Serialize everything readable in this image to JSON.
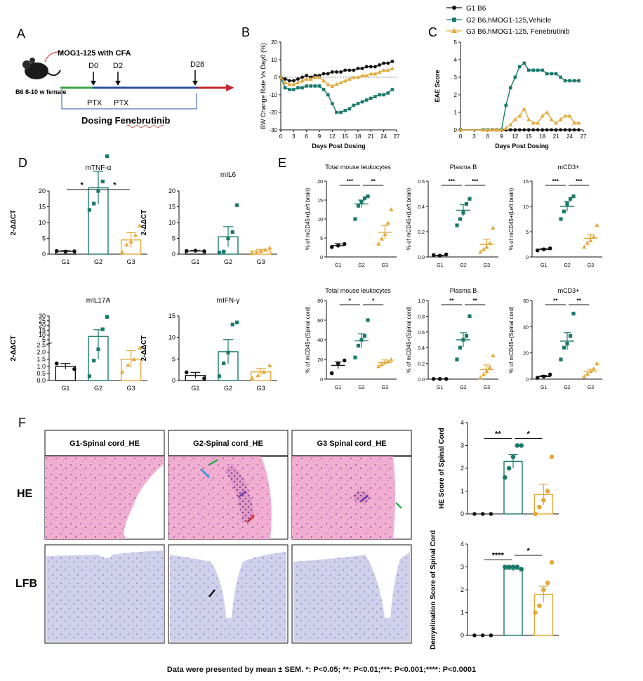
{
  "colors": {
    "g1": "#111111",
    "g2": "#1a7a6a",
    "g3": "#e3a93b",
    "arrow_red": "#c0282e",
    "timeline_green": "#3aa444",
    "timeline_blue": "#2a4fa0",
    "he_pink": "#f0a8c8",
    "lfb_blue": "#c9cbe6"
  },
  "panel_letters": {
    "a": "A",
    "b": "B",
    "c": "C",
    "d": "D",
    "e": "E",
    "f": "F"
  },
  "panel_a": {
    "immunization": "MOG1-125 with CFA",
    "mouse": "B6 8-10 w female",
    "d0": "D0",
    "d2": "D2",
    "d28": "D28",
    "ptx1": "PTX",
    "ptx2": "PTX",
    "dosing": "Dosing Fenebrutinib"
  },
  "legend": {
    "g1": "G1 B6",
    "g2": "G2 B6,hMOG1-125,Vehicle",
    "g3": "G3 B6,hMOG1-125, Fenebrutinib"
  },
  "line_charts": [
    {
      "id": "b",
      "type": "line",
      "ylabel": "BW Change Rate Vs Day0 (%)",
      "xlabel": "Days Post Dosing",
      "ylim": [
        -30,
        20
      ],
      "yticks": [
        -30,
        -20,
        -10,
        0,
        10,
        20
      ],
      "xticks": [
        0,
        3,
        6,
        9,
        12,
        15,
        18,
        21,
        24,
        27
      ],
      "x": [
        0,
        1,
        2,
        3,
        4,
        5,
        6,
        7,
        8,
        9,
        10,
        11,
        12,
        13,
        14,
        15,
        16,
        17,
        18,
        19,
        20,
        21,
        22,
        23,
        24,
        25,
        26
      ],
      "series": [
        {
          "name": "G1 B6",
          "values": [
            0,
            -1,
            -2,
            -2,
            -1,
            0,
            1,
            0,
            1,
            1,
            2,
            2,
            3,
            3,
            3,
            4,
            4,
            4,
            5,
            5,
            6,
            6,
            6,
            7,
            8,
            8,
            9
          ]
        },
        {
          "name": "G2 B6,hMOG1-125,Vehicle",
          "values": [
            0,
            -6,
            -7,
            -7,
            -6,
            -6,
            -5,
            -5,
            -5,
            -5,
            -7,
            -10,
            -15,
            -20,
            -20,
            -19,
            -18,
            -16,
            -15,
            -14,
            -13,
            -12,
            -11,
            -10,
            -10,
            -9,
            -7
          ]
        },
        {
          "name": "G3 B6,hMOG1-125, Fenebrutinib",
          "values": [
            0,
            -3,
            -4,
            -4,
            -3,
            -2,
            -1,
            -1,
            0,
            0,
            -2,
            -4,
            -5,
            -4,
            -3,
            -2,
            -1,
            0,
            0,
            1,
            1,
            2,
            2,
            3,
            4,
            4,
            5
          ]
        }
      ]
    },
    {
      "id": "c",
      "type": "line",
      "ylabel": "EAE Score",
      "xlabel": "Days Post Dosing",
      "ylim": [
        0,
        5
      ],
      "yticks": [
        0,
        1,
        2,
        3,
        4,
        5
      ],
      "xticks": [
        0,
        3,
        6,
        9,
        12,
        15,
        18,
        21,
        24,
        27
      ],
      "x": [
        0,
        5,
        6,
        7,
        8,
        9,
        10,
        11,
        12,
        13,
        14,
        15,
        16,
        17,
        18,
        19,
        20,
        21,
        22,
        23,
        24,
        25,
        26
      ],
      "series": [
        {
          "name": "G1 B6",
          "values": [
            0,
            0,
            0,
            0,
            0,
            0,
            0,
            0,
            0,
            0,
            0,
            0,
            0,
            0,
            0,
            0,
            0,
            0,
            0,
            0,
            0,
            0,
            0
          ]
        },
        {
          "name": "G2 B6,hMOG1-125,Vehicle",
          "values": [
            0,
            0,
            0,
            0,
            0,
            0,
            1.4,
            2.4,
            3.0,
            3.6,
            3.8,
            3.4,
            3.4,
            3.4,
            3.4,
            3.2,
            3.2,
            3.2,
            3.0,
            2.8,
            2.8,
            2.8,
            2.8
          ]
        },
        {
          "name": "G3 B6,hMOG1-125, Fenebrutinib",
          "values": [
            0,
            0,
            0,
            0,
            0,
            0,
            0.1,
            0.3,
            0.6,
            0.8,
            1.2,
            0.6,
            0.4,
            0.4,
            0.8,
            1.0,
            0.6,
            0.4,
            0.6,
            0.8,
            0.8,
            0.4,
            0.4
          ]
        }
      ]
    }
  ],
  "chart_data": [
    {
      "id": "d1",
      "type": "bar",
      "title": "mTNF-α",
      "ylabel": "2-ΔΔCT",
      "categories": [
        "G1",
        "G2",
        "G3"
      ],
      "yticks": [
        "0",
        "5",
        "10",
        "15",
        "20"
      ],
      "ylim": [
        0,
        20
      ],
      "means": [
        0.9,
        21,
        4.5
      ],
      "sems": [
        0.2,
        5.2,
        2.3
      ],
      "points": [
        [
          1,
          0.8,
          0.9
        ],
        [
          14,
          16,
          20,
          23,
          31
        ],
        [
          0.6,
          3,
          4,
          6,
          9
        ]
      ],
      "sig": [
        {
          "from": 0,
          "to": 1,
          "label": "*"
        },
        {
          "from": 1,
          "to": 2,
          "label": "*"
        }
      ]
    },
    {
      "id": "d2",
      "type": "bar",
      "title": "mIL6",
      "ylabel": "2-ΔΔCT",
      "categories": [
        "G1",
        "G2",
        "G3"
      ],
      "yticks": [
        "0",
        "5",
        "10",
        "15",
        "20"
      ],
      "ylim": [
        0,
        20
      ],
      "means": [
        1,
        5.5,
        1
      ],
      "sems": [
        0.15,
        3.2,
        0.5
      ],
      "points": [
        [
          1,
          1.1,
          0.9
        ],
        [
          0.5,
          0.8,
          5,
          7,
          15.5
        ],
        [
          0.3,
          0.6,
          1,
          1.4,
          2
        ]
      ],
      "sig": []
    },
    {
      "id": "d3",
      "type": "bar",
      "title": "mIL17A",
      "ylabel": "2-ΔΔCT",
      "categories": [
        "G1",
        "G2",
        "G3"
      ],
      "yticks": [
        "0.0",
        "0.5",
        "1.0",
        "1.5",
        "2.0",
        "2.5",
        "5",
        "10",
        "15",
        "20",
        "25",
        "30"
      ],
      "ylim": [
        0,
        30
      ],
      "means": [
        1,
        8.5,
        1.5
      ],
      "sems": [
        0.2,
        7,
        0.6
      ],
      "points": [
        [
          1.2,
          0.8
        ],
        [
          0.3,
          1.4,
          2.2,
          16,
          29
        ],
        [
          0.6,
          1.1,
          1.5,
          2.3
        ]
      ],
      "sig": []
    },
    {
      "id": "d4",
      "type": "bar",
      "title": "mIFN-γ",
      "ylabel": "2-ΔΔCT",
      "categories": [
        "G1",
        "G2",
        "G3"
      ],
      "yticks": [
        "0",
        "5",
        "10",
        "15"
      ],
      "ylim": [
        0,
        15
      ],
      "means": [
        1.2,
        6.7,
        2
      ],
      "sems": [
        0.7,
        2.8,
        0.8
      ],
      "points": [
        [
          1.9,
          0.5
        ],
        [
          1,
          4,
          6.5,
          13,
          13.5
        ],
        [
          0.6,
          1.2,
          2,
          3.5
        ]
      ],
      "sig": []
    },
    {
      "id": "e1",
      "type": "bar",
      "title": "Total mouse leukocytes",
      "ylabel": "% of mCD45+(Left brain)",
      "categories": [
        "G1",
        "G2",
        "G3"
      ],
      "yticks": [
        "0",
        "5",
        "10",
        "15",
        "20"
      ],
      "ylim": [
        0,
        20
      ],
      "means": [
        3,
        14,
        6.5
      ],
      "sems": [
        0.5,
        1,
        1.8
      ],
      "points": [
        [
          2.6,
          3,
          3.4
        ],
        [
          10,
          13.5,
          14.5,
          15.5,
          16
        ],
        [
          3.5,
          4.8,
          6,
          9,
          12.5
        ]
      ],
      "sig": [
        {
          "from": 0,
          "to": 1,
          "label": "***"
        },
        {
          "from": 1,
          "to": 2,
          "label": "**"
        }
      ]
    },
    {
      "id": "e2",
      "type": "bar",
      "title": "Plasma B",
      "ylabel": "% of mCD45+(Left brain)",
      "categories": [
        "G1",
        "G2",
        "G3"
      ],
      "yticks": [
        "0.0",
        "0.2",
        "0.4",
        "0.6"
      ],
      "ylim": [
        0,
        0.6
      ],
      "means": [
        0.01,
        0.37,
        0.1
      ],
      "sems": [
        0.004,
        0.045,
        0.04
      ],
      "points": [
        [
          0.015,
          0.01,
          0.02
        ],
        [
          0.25,
          0.3,
          0.35,
          0.42,
          0.46
        ],
        [
          0.04,
          0.06,
          0.08,
          0.11,
          0.23
        ]
      ],
      "sig": [
        {
          "from": 0,
          "to": 1,
          "label": "***"
        },
        {
          "from": 1,
          "to": 2,
          "label": "***"
        }
      ]
    },
    {
      "id": "e3",
      "type": "bar",
      "title": "mCD3+",
      "ylabel": "% of mCD45+(Left brain)",
      "categories": [
        "G1",
        "G2",
        "G3"
      ],
      "yticks": [
        "0",
        "5",
        "10",
        "15"
      ],
      "ylim": [
        0,
        15
      ],
      "means": [
        1.5,
        10,
        3.7
      ],
      "sems": [
        0.15,
        1,
        0.8
      ],
      "points": [
        [
          1.3,
          1.5,
          1.7
        ],
        [
          7.5,
          9,
          10.5,
          11.5,
          12
        ],
        [
          2,
          2.8,
          3.3,
          4,
          6.3
        ]
      ],
      "sig": [
        {
          "from": 0,
          "to": 1,
          "label": "***"
        },
        {
          "from": 1,
          "to": 2,
          "label": "***"
        }
      ]
    },
    {
      "id": "e4",
      "type": "bar",
      "title": "Total mouse leukocytes",
      "ylabel": "% of mCD45+(Spinal cord)",
      "categories": [
        "G1",
        "G2",
        "G3"
      ],
      "yticks": [
        "0",
        "20",
        "40",
        "60",
        "80"
      ],
      "ylim": [
        0,
        80
      ],
      "means": [
        14,
        39,
        17
      ],
      "sems": [
        3.5,
        7,
        2.5
      ],
      "points": [
        [
          6,
          16,
          19
        ],
        [
          22,
          34,
          40,
          44,
          60
        ],
        [
          13,
          15,
          17,
          18,
          20
        ]
      ],
      "sig": [
        {
          "from": 0,
          "to": 1,
          "label": "*"
        },
        {
          "from": 1,
          "to": 2,
          "label": "*"
        }
      ]
    },
    {
      "id": "e5",
      "type": "bar",
      "title": "Plasma B",
      "ylabel": "% of mCD45+(Spinal cord)",
      "categories": [
        "G1",
        "G2",
        "G3"
      ],
      "yticks": [
        "0.0",
        "0.2",
        "0.4",
        "0.6",
        "0.8",
        "1.0"
      ],
      "ylim": [
        0,
        1.0
      ],
      "means": [
        0.002,
        0.5,
        0.12
      ],
      "sems": [
        0.001,
        0.09,
        0.06
      ],
      "points": [
        [
          0.002,
          0.002,
          0.002
        ],
        [
          0.25,
          0.4,
          0.5,
          0.55,
          0.8
        ],
        [
          0.02,
          0.06,
          0.1,
          0.15,
          0.3
        ]
      ],
      "sig": [
        {
          "from": 0,
          "to": 1,
          "label": "**"
        },
        {
          "from": 1,
          "to": 2,
          "label": "**"
        }
      ]
    },
    {
      "id": "e6",
      "type": "bar",
      "title": "mCD3+",
      "ylabel": "% of mCD45+(Spinal cord)",
      "categories": [
        "G1",
        "G2",
        "G3"
      ],
      "yticks": [
        "0",
        "20",
        "40",
        "60"
      ],
      "ylim": [
        0,
        60
      ],
      "means": [
        2,
        29,
        6
      ],
      "sems": [
        0.8,
        6.5,
        1.5
      ],
      "points": [
        [
          1,
          2,
          3.5
        ],
        [
          15,
          24,
          27,
          33,
          50
        ],
        [
          2,
          4,
          6,
          8,
          12
        ]
      ],
      "sig": [
        {
          "from": 0,
          "to": 1,
          "label": "**"
        },
        {
          "from": 1,
          "to": 2,
          "label": "**"
        }
      ]
    },
    {
      "id": "f1",
      "type": "bar",
      "title": "",
      "ylabel": "HE Score of Spinal Cord",
      "categories": [
        "",
        "",
        ""
      ],
      "yticks": [
        "0",
        "1",
        "2",
        "3",
        "4"
      ],
      "ylim": [
        0,
        4
      ],
      "means": [
        0,
        2.3,
        0.85
      ],
      "sems": [
        0,
        0.3,
        0.45
      ],
      "points": [
        [
          0,
          0,
          0
        ],
        [
          1.6,
          2,
          2.5,
          3,
          3
        ],
        [
          0,
          0.3,
          0.6,
          1.0,
          2.5
        ]
      ],
      "sig": [
        {
          "from": 0,
          "to": 1,
          "label": "**"
        },
        {
          "from": 1,
          "to": 2,
          "label": "*"
        }
      ]
    },
    {
      "id": "f2",
      "type": "bar",
      "title": "",
      "ylabel": "Demyelination Score of Spinal Cord",
      "categories": [
        "",
        "",
        ""
      ],
      "yticks": [
        "0",
        "1",
        "2",
        "3",
        "4"
      ],
      "ylim": [
        0,
        4
      ],
      "means": [
        0,
        2.9,
        1.8
      ],
      "sems": [
        0,
        0.08,
        0.35
      ],
      "points": [
        [
          0,
          0,
          0
        ],
        [
          3,
          3,
          3,
          3,
          2.9
        ],
        [
          1,
          1.3,
          2,
          2.3,
          3.2
        ]
      ],
      "sig": [
        {
          "from": 0,
          "to": 1,
          "label": "****"
        },
        {
          "from": 1,
          "to": 2,
          "label": "*"
        }
      ]
    }
  ],
  "histology": {
    "headers": [
      "G1-Spinal cord_HE",
      "G2-Spinal cord_HE",
      "G3 Spinal cord_HE"
    ],
    "row_he": "HE",
    "row_lfb": "LFB"
  },
  "footnote": "Data were presented by mean ± SEM. *: P<0.05; **: P<0.01;***: P<0.001;****: P<0.0001"
}
